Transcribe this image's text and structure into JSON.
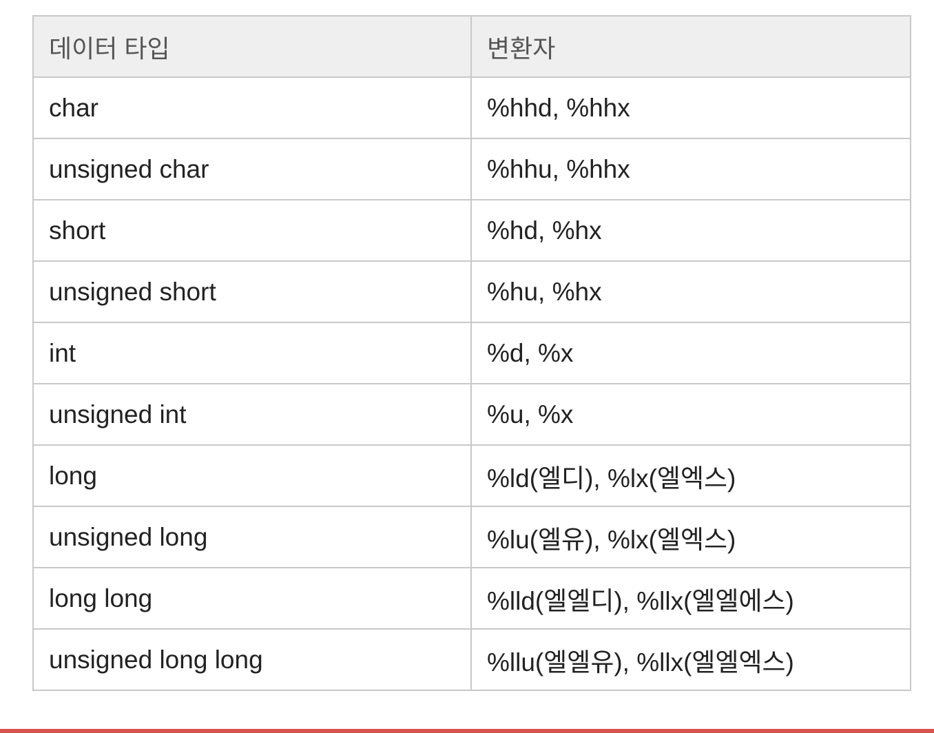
{
  "table": {
    "headers": [
      "데이터 타입",
      "변환자"
    ],
    "rows": [
      [
        "char",
        "%hhd, %hhx"
      ],
      [
        "unsigned char",
        "%hhu, %hhx"
      ],
      [
        "short",
        "%hd, %hx"
      ],
      [
        "unsigned short",
        "%hu, %hx"
      ],
      [
        "int",
        "%d, %x"
      ],
      [
        "unsigned int",
        "%u, %x"
      ],
      [
        "long",
        "%ld(엘디), %lx(엘엑스)"
      ],
      [
        "unsigned long",
        "%lu(엘유), %lx(엘엑스)"
      ],
      [
        "long long",
        "%lld(엘엘디), %llx(엘엘에스)"
      ],
      [
        "unsigned long long",
        "%llu(엘엘유), %llx(엘엘엑스)"
      ]
    ]
  },
  "colors": {
    "header_bg": "#efefef",
    "border": "#c8c8c8",
    "bottom_rule": "#d9534f"
  }
}
